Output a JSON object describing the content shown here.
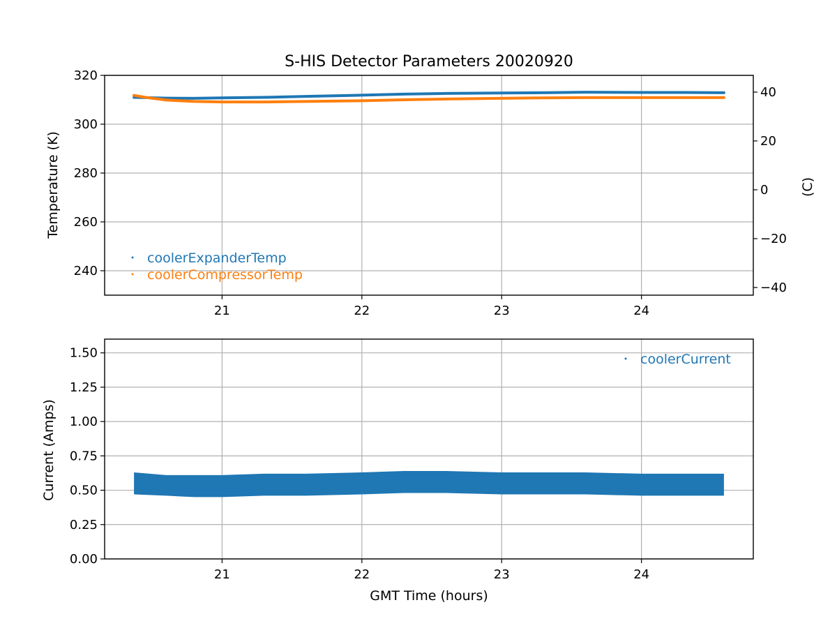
{
  "chart_data": [
    {
      "type": "scatter",
      "title": "S-HIS Detector Parameters 20020920",
      "ylabel": "Temperature (K)",
      "y2label": "(C)",
      "xlim": [
        20.16,
        24.8
      ],
      "ylim": [
        230,
        320
      ],
      "y2lim": [
        -43.15,
        46.85
      ],
      "xticks": [
        "21",
        "22",
        "23",
        "24"
      ],
      "yticks": [
        "240",
        "260",
        "280",
        "300",
        "320"
      ],
      "y2ticks": [
        "−40",
        "−20",
        "0",
        "20",
        "40"
      ],
      "grid": true,
      "legend_position": "lower-left",
      "series": [
        {
          "name": "coolerExpanderTemp",
          "color": "#1f77b4",
          "x": [
            20.37,
            20.6,
            20.8,
            21.0,
            21.3,
            21.6,
            22.0,
            22.3,
            22.6,
            23.0,
            23.3,
            23.6,
            24.0,
            24.3,
            24.59
          ],
          "y": [
            311.0,
            310.7,
            310.6,
            310.8,
            311.0,
            311.4,
            311.9,
            312.3,
            312.6,
            312.8,
            312.9,
            313.1,
            313.0,
            313.0,
            312.9
          ]
        },
        {
          "name": "coolerCompressorTemp",
          "color": "#ff7f0e",
          "x": [
            20.37,
            20.45,
            20.6,
            20.8,
            21.0,
            21.3,
            21.6,
            22.0,
            22.3,
            22.6,
            23.0,
            23.3,
            23.6,
            24.0,
            24.3,
            24.59
          ],
          "y": [
            311.8,
            311.0,
            309.9,
            309.3,
            309.1,
            309.1,
            309.3,
            309.6,
            310.0,
            310.3,
            310.6,
            310.8,
            310.9,
            310.9,
            310.9,
            310.9
          ]
        }
      ]
    },
    {
      "type": "scatter",
      "xlabel": "GMT Time (hours)",
      "ylabel": "Current (Amps)",
      "xlim": [
        20.16,
        24.8
      ],
      "ylim": [
        0.0,
        1.6
      ],
      "xticks": [
        "21",
        "22",
        "23",
        "24"
      ],
      "yticks": [
        "0.00",
        "0.25",
        "0.50",
        "0.75",
        "1.00",
        "1.25",
        "1.50"
      ],
      "grid": true,
      "legend_position": "upper-right",
      "series": [
        {
          "name": "coolerCurrent",
          "color": "#1f77b4",
          "x": [
            20.37,
            20.6,
            20.8,
            21.0,
            21.3,
            21.6,
            22.0,
            22.3,
            22.6,
            23.0,
            23.3,
            23.6,
            24.0,
            24.3,
            24.59
          ],
          "y_low": [
            0.47,
            0.46,
            0.45,
            0.45,
            0.46,
            0.46,
            0.47,
            0.48,
            0.48,
            0.47,
            0.47,
            0.47,
            0.46,
            0.46,
            0.46
          ],
          "y_high": [
            0.63,
            0.61,
            0.61,
            0.61,
            0.62,
            0.62,
            0.63,
            0.64,
            0.64,
            0.63,
            0.63,
            0.63,
            0.62,
            0.62,
            0.62
          ]
        }
      ]
    }
  ]
}
